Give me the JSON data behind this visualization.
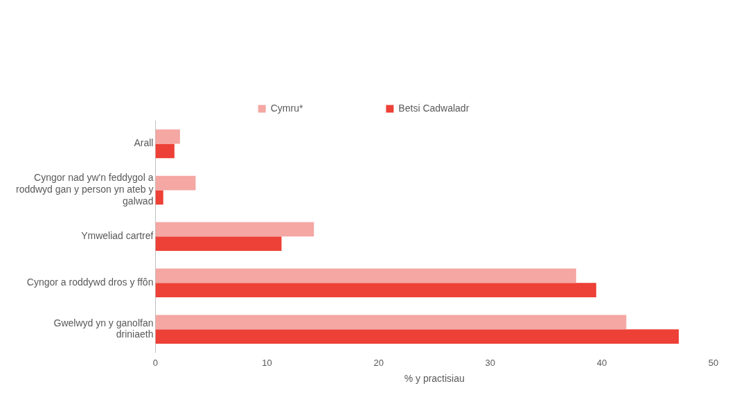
{
  "chart_data": {
    "type": "bar",
    "orientation": "horizontal",
    "xlabel": "% y practisiau",
    "categories": [
      "Arall",
      "Cyngor nad yw'n feddygol a roddwyd gan y person yn ateb y galwad",
      "Ymweliad cartref",
      "Cyngor a roddywd dros y ffôn",
      "Gwelwyd yn y ganolfan driniaeth"
    ],
    "series": [
      {
        "name": "Cymru*",
        "color": "#f4a7a3",
        "values": [
          2.2,
          3.6,
          14.2,
          37.7,
          42.2
        ]
      },
      {
        "name": "Betsi Cadwaladr",
        "color": "#ed4036",
        "values": [
          1.7,
          0.7,
          11.3,
          39.5,
          46.9
        ]
      }
    ],
    "xlim": [
      0,
      50
    ],
    "xticks": [
      0,
      10,
      20,
      30,
      40,
      50
    ],
    "grid": false,
    "legend": "top"
  }
}
